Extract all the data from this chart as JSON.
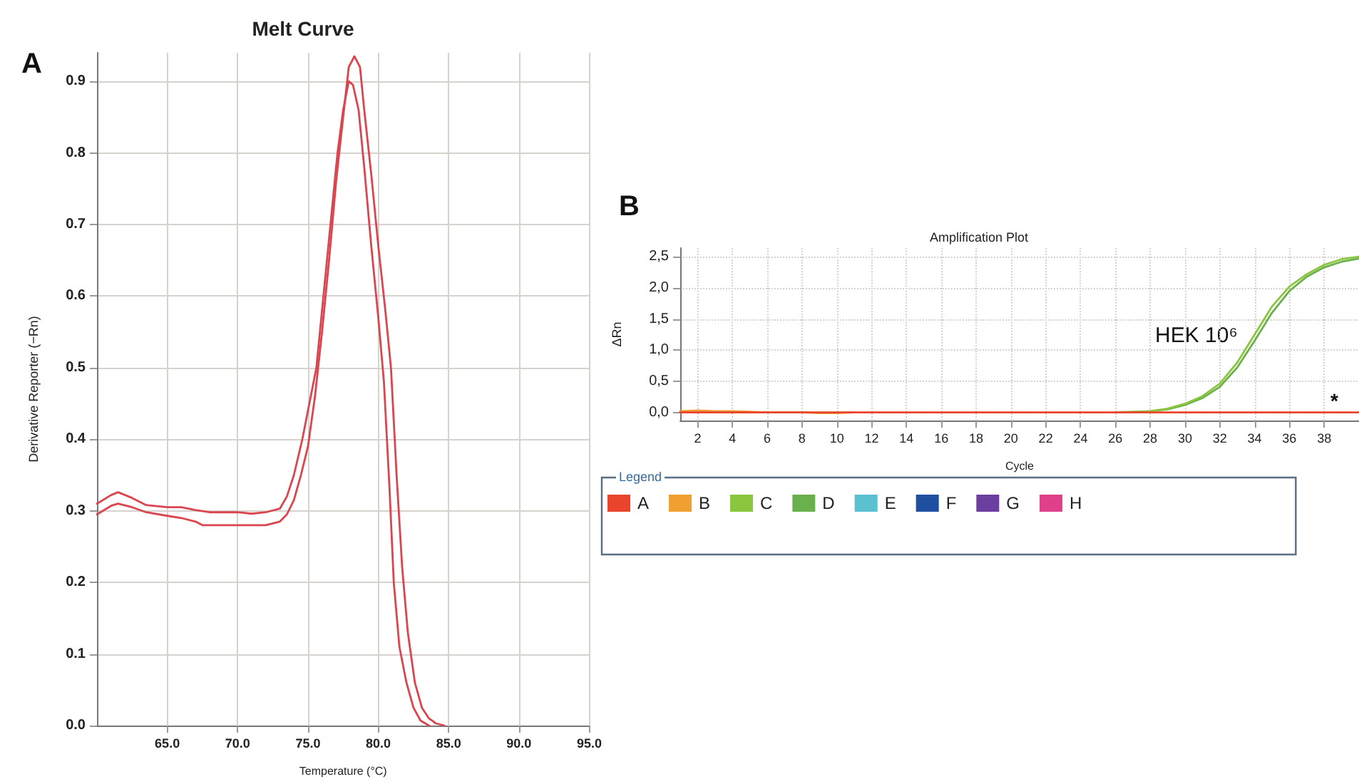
{
  "chart_data": [
    {
      "type": "line",
      "title": "Melt Curve",
      "xlabel": "Temperature (°C)",
      "ylabel": "Derivative Reporter (−Rn)",
      "annotations": [
        "A"
      ],
      "xlim": [
        60,
        95
      ],
      "xticks": [
        {
          "value": 65,
          "label": "65.0"
        },
        {
          "value": 70,
          "label": "70.0"
        },
        {
          "value": 75,
          "label": "75.0"
        },
        {
          "value": 80,
          "label": "80.0"
        },
        {
          "value": 85,
          "label": "85.0"
        },
        {
          "value": 90,
          "label": "90.0"
        },
        {
          "value": 95,
          "label": "95.0"
        }
      ],
      "ylim": [
        0,
        0.94
      ],
      "yticks": [
        {
          "value": 0,
          "label": "0.0"
        },
        0.1,
        0.2,
        0.3,
        0.4,
        0.5,
        0.6,
        0.7,
        0.8,
        0.9
      ],
      "grid": true,
      "marker": "none",
      "series": [
        {
          "color": "#d9464f",
          "x": [
            60,
            61,
            61.5,
            62.5,
            63.5,
            65,
            66,
            67,
            68,
            70,
            71,
            72,
            73,
            73.5,
            74,
            74.6,
            75.1,
            75.6,
            76.1,
            76.6,
            77.1,
            77.5,
            77.9,
            78.2,
            78.6,
            79,
            79.5,
            80,
            80.4,
            80.8,
            81.1,
            81.5,
            82,
            82.5,
            83,
            83.6
          ],
          "values": [
            0.31,
            0.322,
            0.326,
            0.318,
            0.308,
            0.305,
            0.305,
            0.301,
            0.298,
            0.298,
            0.296,
            0.298,
            0.303,
            0.32,
            0.35,
            0.4,
            0.45,
            0.5,
            0.6,
            0.7,
            0.8,
            0.86,
            0.9,
            0.895,
            0.86,
            0.78,
            0.67,
            0.57,
            0.48,
            0.33,
            0.2,
            0.11,
            0.06,
            0.025,
            0.007,
            0
          ]
        },
        {
          "color": "#d9464f",
          "x": [
            60,
            61,
            61.5,
            62.5,
            63.5,
            65,
            66,
            67,
            67.5,
            70,
            72,
            73,
            73.5,
            74,
            74.5,
            75,
            75.5,
            76,
            76.5,
            77,
            77.5,
            77.9,
            78.3,
            78.7,
            79,
            79.5,
            80,
            80.5,
            80.9,
            81.3,
            81.7,
            82.1,
            82.6,
            83.1,
            83.6,
            84.1,
            84.7
          ],
          "values": [
            0.295,
            0.307,
            0.31,
            0.305,
            0.298,
            0.293,
            0.29,
            0.285,
            0.28,
            0.28,
            0.28,
            0.285,
            0.295,
            0.315,
            0.35,
            0.39,
            0.46,
            0.55,
            0.65,
            0.76,
            0.85,
            0.92,
            0.935,
            0.92,
            0.86,
            0.77,
            0.67,
            0.58,
            0.5,
            0.35,
            0.22,
            0.13,
            0.06,
            0.025,
            0.01,
            0.003,
            0
          ]
        }
      ]
    },
    {
      "type": "line",
      "title": "Amplification Plot",
      "xlabel": "Cycle",
      "ylabel": "ΔRn",
      "legend_title": "Legend",
      "annotations": [
        "B",
        "HEK 10⁶",
        "*"
      ],
      "xlim": [
        1,
        40
      ],
      "xticks": [
        2,
        4,
        6,
        8,
        10,
        12,
        14,
        16,
        18,
        20,
        22,
        24,
        26,
        28,
        30,
        32,
        34,
        36,
        38
      ],
      "ylim": [
        -0.13,
        2.64
      ],
      "yticks": [
        {
          "value": 0,
          "label": "0,0"
        },
        {
          "value": 0.5,
          "label": "0,5"
        },
        {
          "value": 1,
          "label": "1,0"
        },
        {
          "value": 1.5,
          "label": "1,5"
        },
        {
          "value": 2,
          "label": "2,0"
        },
        {
          "value": 2.5,
          "label": "2,5"
        }
      ],
      "grid": true,
      "marker": "none",
      "legend": "bottom",
      "series": [
        {
          "name": "A",
          "color": "#e8452c",
          "x": [
            1,
            40
          ],
          "values": [
            0,
            0
          ]
        },
        {
          "name": "B",
          "color": "#f0a030",
          "x": [
            1,
            2,
            3,
            4,
            5,
            6,
            8,
            9,
            10,
            11
          ],
          "values": [
            0.02,
            0.03,
            0.02,
            0.02,
            0.01,
            0,
            0,
            -0.01,
            -0.01,
            0
          ]
        },
        {
          "name": "C",
          "color": "#8cc63f",
          "x": [
            26,
            27,
            28,
            29,
            30,
            31,
            32,
            33,
            34,
            35,
            36,
            37,
            38,
            39,
            40
          ],
          "values": [
            0,
            0.01,
            0.02,
            0.06,
            0.14,
            0.26,
            0.46,
            0.8,
            1.25,
            1.7,
            2.02,
            2.22,
            2.37,
            2.46,
            2.5
          ]
        },
        {
          "name": "D",
          "color": "#6ab04c",
          "x": [
            26,
            27,
            28,
            29,
            30,
            31,
            32,
            33,
            34,
            35,
            36,
            37,
            38,
            39,
            40
          ],
          "values": [
            0,
            0,
            0.02,
            0.05,
            0.12,
            0.23,
            0.41,
            0.72,
            1.15,
            1.6,
            1.95,
            2.18,
            2.33,
            2.42,
            2.47
          ]
        },
        {
          "name": "E",
          "color": "#5bc0d0"
        },
        {
          "name": "F",
          "color": "#1f4fa0"
        },
        {
          "name": "G",
          "color": "#6a3fa0"
        },
        {
          "name": "H",
          "color": "#e0408a"
        }
      ]
    }
  ]
}
